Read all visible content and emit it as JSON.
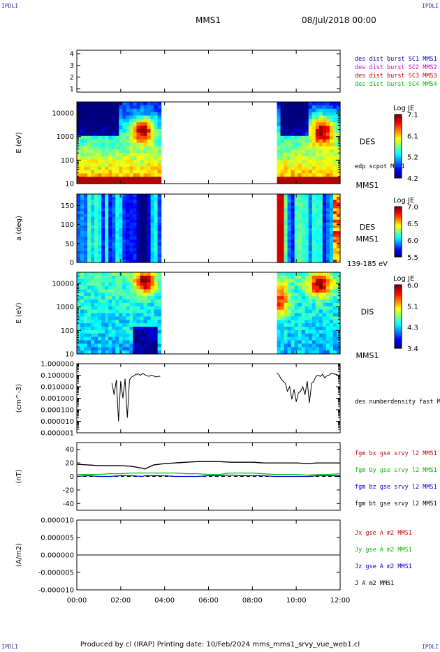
{
  "header": {
    "corner_tl": "IPDLI",
    "corner_tr": "IPDLI",
    "corner_bl": "IPDLI",
    "corner_br": "IPDLI",
    "spacecraft": "MMS1",
    "date": "08/Jul/2018 00:00"
  },
  "footer": {
    "text": "Produced by cl (IRAP)   Printing date: 10/Feb/2024   mms_mms1_srvy_vue_web1.cl"
  },
  "colors": {
    "mms1": "#0000cc",
    "mms2": "#cc00cc",
    "mms3": "#cc0000",
    "mms4": "#00bb00",
    "bx": "#cc0000",
    "by": "#00bb00",
    "bz": "#0000cc",
    "bt": "#000000"
  },
  "chart_data": [
    {
      "type": "scatter",
      "panel": "burst",
      "yticks": [
        "4",
        "3",
        "2",
        "1"
      ],
      "ylim": [
        0.7,
        4.3
      ],
      "legend": [
        {
          "text": "des dist burst SC1 MMS1",
          "color": "#0000cc"
        },
        {
          "text": "des dist burst SC2 MMS2",
          "color": "#cc00cc"
        },
        {
          "text": "des dist burst SC3 MMS3",
          "color": "#cc0000"
        },
        {
          "text": "des dist burst SC4 MMS4",
          "color": "#00bb00"
        }
      ]
    },
    {
      "type": "heatmap",
      "panel": "des-energy",
      "ylabel": "E (eV)",
      "yscale": "log",
      "ylim": [
        10,
        30000
      ],
      "yticks": [
        "10000",
        "1000",
        "100",
        "10"
      ],
      "label": "DES",
      "label2": "MMS1",
      "overlay_label": "edp scpot MMS1",
      "colorbar": {
        "title": "Log JE",
        "ticks": [
          "7.1",
          "6.1",
          "5.2",
          "4.2"
        ]
      },
      "data_intervals_hours": [
        [
          0.0,
          3.85
        ],
        [
          9.05,
          12.0
        ]
      ]
    },
    {
      "type": "heatmap",
      "panel": "des-pitch",
      "ylabel": "a (deg)",
      "ylim": [
        0,
        180
      ],
      "yticks": [
        "150",
        "100",
        "50",
        "0"
      ],
      "label": "DES",
      "label2": "MMS1",
      "energy_label": "139-185 eV",
      "colorbar": {
        "title": "Log JE",
        "ticks": [
          "7.0",
          "6.5",
          "6.0",
          "5.5"
        ]
      },
      "data_intervals_hours": [
        [
          0.0,
          3.85
        ],
        [
          9.05,
          12.0
        ]
      ]
    },
    {
      "type": "heatmap",
      "panel": "dis-energy",
      "ylabel": "E (eV)",
      "yscale": "log",
      "ylim": [
        10,
        30000
      ],
      "yticks": [
        "10000",
        "1000",
        "100",
        "10"
      ],
      "label": "DIS",
      "label2": "MMS1",
      "colorbar": {
        "title": "Log JE",
        "ticks": [
          "6.0",
          "5.1",
          "4.3",
          "3.4"
        ]
      },
      "data_intervals_hours": [
        [
          0.0,
          3.85
        ],
        [
          9.05,
          12.0
        ]
      ]
    },
    {
      "type": "line",
      "panel": "density",
      "ylabel": "(cm^-3)",
      "yscale": "log",
      "ylim": [
        1e-06,
        1.0
      ],
      "yticks": [
        "1.000000",
        "0.100000",
        "0.010000",
        "0.001000",
        "0.000100",
        "0.000010",
        "0.000001"
      ],
      "legend": [
        {
          "text": "des numberdensity fast M",
          "color": "#000000"
        }
      ],
      "x": [
        1.6,
        1.7,
        1.8,
        1.9,
        2.0,
        2.1,
        2.2,
        2.3,
        2.4,
        2.5,
        2.6,
        2.7,
        2.8,
        2.9,
        3.0,
        3.1,
        3.2,
        3.3,
        3.4,
        3.5,
        3.6,
        3.7,
        3.8,
        9.1,
        9.2,
        9.3,
        9.4,
        9.5,
        9.6,
        9.7,
        9.8,
        9.9,
        10.0,
        10.1,
        10.2,
        10.3,
        10.4,
        10.5,
        10.6,
        10.7,
        10.8,
        10.9,
        11.0,
        11.1,
        11.2,
        11.3,
        11.4,
        11.5,
        11.6,
        11.7,
        11.8,
        11.9,
        12.0
      ],
      "values": [
        0.02,
        0.002,
        0.04,
        1e-05,
        0.03,
        0.001,
        0.05,
        2e-05,
        0.04,
        0.07,
        0.09,
        0.12,
        0.13,
        0.1,
        0.14,
        0.11,
        0.09,
        0.08,
        0.1,
        0.09,
        0.07,
        0.08,
        0.08,
        0.15,
        0.12,
        0.05,
        0.03,
        0.02,
        0.004,
        0.01,
        0.0008,
        0.006,
        0.0005,
        0.003,
        0.004,
        0.01,
        0.002,
        0.03,
        0.0004,
        0.02,
        0.03,
        0.08,
        0.1,
        0.08,
        0.12,
        0.06,
        0.09,
        0.1,
        0.15,
        0.13,
        0.12,
        0.1,
        0.11
      ]
    },
    {
      "type": "line",
      "panel": "magnetic-field",
      "ylabel": "(nT)",
      "ylim": [
        -50,
        50
      ],
      "yticks": [
        "40",
        "20",
        "0",
        "-20",
        "-40"
      ],
      "x": [
        0,
        0.5,
        1,
        1.5,
        2,
        2.5,
        3,
        3.1,
        3.5,
        4,
        4.5,
        5,
        5.5,
        6,
        6.5,
        7,
        7.5,
        8,
        8.5,
        9,
        9.5,
        10,
        10.5,
        11,
        11.5,
        12
      ],
      "series": [
        {
          "name": "fgm bx gse srvy l2 MMS1",
          "color": "#cc0000",
          "values": [
            18,
            17,
            16,
            16,
            16,
            15,
            12,
            11,
            17,
            19,
            20,
            21,
            22,
            22,
            22,
            21,
            21,
            21,
            20,
            20,
            20,
            20,
            19,
            20,
            20,
            20
          ]
        },
        {
          "name": "fgm by gse srvy l2 MMS1",
          "color": "#00bb00",
          "values": [
            3,
            3,
            3,
            4,
            4,
            5,
            5,
            5,
            5,
            5,
            5,
            4,
            4,
            3,
            3,
            5,
            5,
            5,
            4,
            3,
            3,
            3,
            2,
            3,
            3,
            4
          ]
        },
        {
          "name": "fgm bz gse srvy l2 MMS1",
          "color": "#0000cc",
          "values": [
            0,
            1,
            0,
            0,
            1,
            1,
            0,
            1,
            1,
            1,
            0,
            0,
            0,
            1,
            1,
            2,
            1,
            1,
            1,
            0,
            0,
            0,
            0,
            1,
            1,
            1
          ]
        },
        {
          "name": "fgm bt gse srvy l2 MMS1",
          "color": "#000000",
          "values": [
            18,
            17,
            16,
            16,
            16,
            15,
            12,
            11,
            17,
            19,
            20,
            21,
            22,
            22,
            22,
            21,
            21,
            21,
            20,
            20,
            20,
            20,
            19,
            20,
            20,
            20
          ]
        }
      ]
    },
    {
      "type": "line",
      "panel": "current-density",
      "ylabel": "(A/m2)",
      "ylim": [
        -1e-05,
        1e-05
      ],
      "yticks": [
        "0.000010",
        "0.000005",
        "0.000000",
        "-0.000005",
        "-0.000010"
      ],
      "x": [
        0,
        12
      ],
      "series": [
        {
          "name": "Jx gse A m2 MMS1",
          "color": "#cc0000",
          "values": [
            0,
            0
          ]
        },
        {
          "name": "Jy gse A m2 MMS1",
          "color": "#00bb00",
          "values": [
            0,
            0
          ]
        },
        {
          "name": "Jz gse A m2 MMS1",
          "color": "#0000cc",
          "values": [
            0,
            0
          ]
        },
        {
          "name": "J A m2 MMS1",
          "color": "#000000",
          "values": [
            0,
            0
          ]
        }
      ]
    }
  ],
  "time_axis": {
    "range_hours": [
      0,
      12
    ],
    "ticks": [
      {
        "hour": 0,
        "label": "00:00"
      },
      {
        "hour": 2,
        "label": "02:00"
      },
      {
        "hour": 4,
        "label": "04:00"
      },
      {
        "hour": 6,
        "label": "06:00"
      },
      {
        "hour": 8,
        "label": "08:00"
      },
      {
        "hour": 10,
        "label": "10:00"
      },
      {
        "hour": 12,
        "label": "12:00"
      }
    ]
  }
}
